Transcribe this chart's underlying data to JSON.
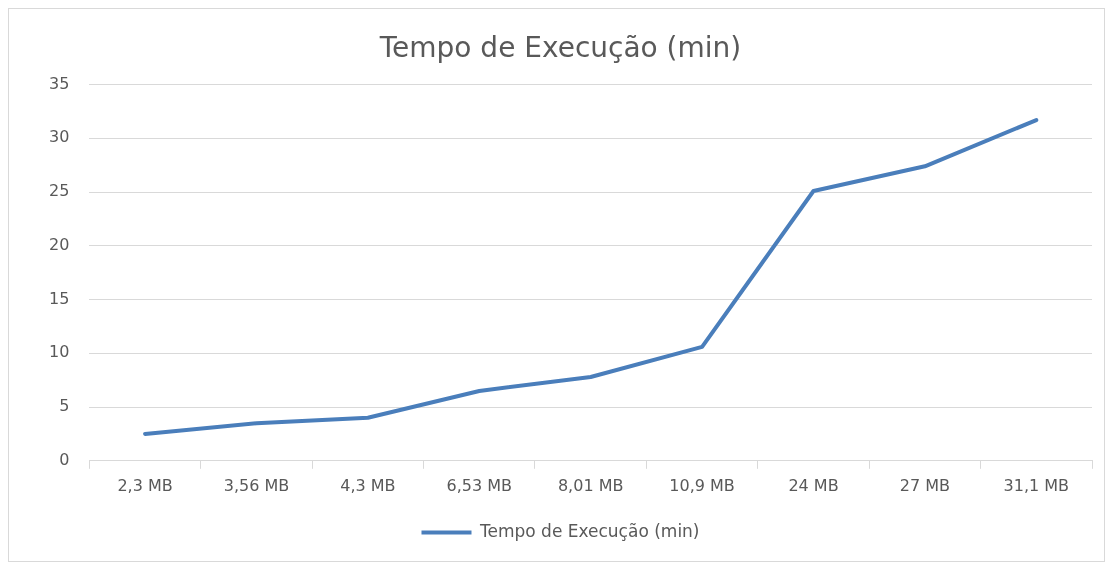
{
  "chart_data": {
    "type": "line",
    "title": "Tempo de Execução (min)",
    "categories": [
      "2,3 MB",
      "3,56 MB",
      "4,3 MB",
      "6,53 MB",
      "8,01 MB",
      "10,9 MB",
      "24 MB",
      "27 MB",
      "31,1 MB"
    ],
    "series": [
      {
        "name": "Tempo de Execução (min)",
        "color": "#4a7ebb",
        "values": [
          2.5,
          3.5,
          4,
          6.5,
          7.8,
          10.6,
          25.1,
          27.4,
          31.7
        ]
      }
    ],
    "ylim": [
      0,
      35
    ],
    "yticks": [
      0,
      5,
      10,
      15,
      20,
      25,
      30,
      35
    ],
    "grid": "y",
    "legend": "bottom",
    "marker": "none",
    "line_style": "solid"
  }
}
